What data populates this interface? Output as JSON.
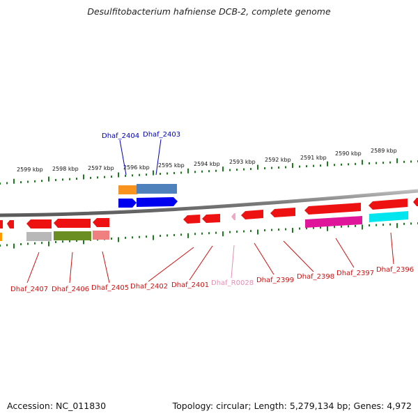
{
  "title": "Desulfitobacterium hafniense DCB-2, complete genome",
  "footer": {
    "accession": "Accession: NC_011830",
    "topology": "Topology: circular; Length: 5,279,134 bp; Genes: 4,972"
  },
  "colors": {
    "backbone": "#8a8a8a",
    "tick": "#1f7a1f",
    "label_red": "#d01010",
    "label_blue": "#0000bb",
    "label_pink": "#e98db5"
  },
  "scale_labels": [
    "2599 kbp",
    "2598 kbp",
    "2597 kbp",
    "2596 kbp",
    "2595 kbp",
    "2594 kbp",
    "2593 kbp",
    "2592 kbp",
    "2591 kbp",
    "2590 kbp",
    "2589 kbp"
  ],
  "genes_outer": [
    {
      "name": "Dhaf_2404",
      "color": "#ff9900",
      "cog": "#f7931e"
    },
    {
      "name": "Dhaf_2403",
      "color": "#0000ee",
      "cog": "#4f81bd"
    }
  ],
  "genes_inner": [
    {
      "name": "Dhaf_2407",
      "cog": "#b8b8b8"
    },
    {
      "name": "Dhaf_2406",
      "cog": "#6b8e23"
    },
    {
      "name": "Dhaf_2405",
      "cog": "#f08080"
    },
    {
      "name": "Dhaf_2402"
    },
    {
      "name": "Dhaf_2401"
    },
    {
      "name": "Dhaf_R0028",
      "color": "#f4a6c8"
    },
    {
      "name": "Dhaf_2399"
    },
    {
      "name": "Dhaf_2398",
      "cog": "#e0169a"
    },
    {
      "name": "Dhaf_2397"
    },
    {
      "name": "Dhaf_2396",
      "cog": "#00e5ee"
    }
  ]
}
